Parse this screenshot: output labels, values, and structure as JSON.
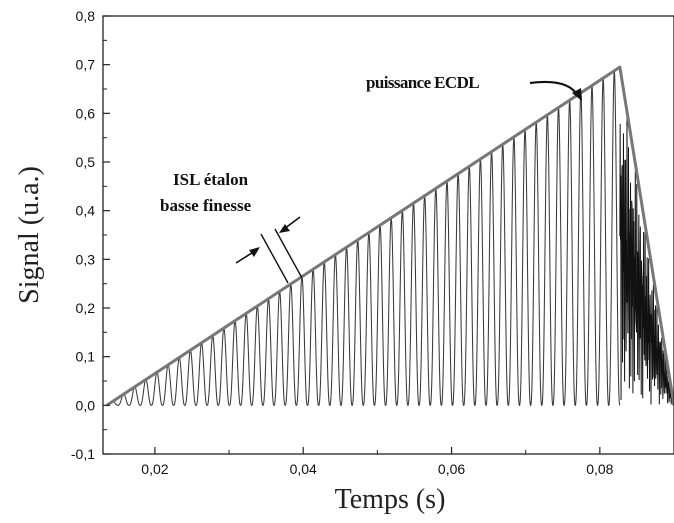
{
  "chart_data": {
    "type": "line",
    "title": "",
    "xlabel": "Temps (s)",
    "ylabel": "Signal (u.a.)",
    "xlim": [
      0.013,
      0.09
    ],
    "ylim": [
      -0.1,
      0.8
    ],
    "xticks": [
      0.02,
      0.04,
      0.06,
      0.08
    ],
    "xtick_labels": [
      "0,02",
      "0,04",
      "0,06",
      "0,08"
    ],
    "yticks": [
      -0.1,
      0.0,
      0.1,
      0.2,
      0.3,
      0.4,
      0.5,
      0.6,
      0.7,
      0.8
    ],
    "ytick_labels": [
      "-0,1",
      "0,0",
      "0,1",
      "0,2",
      "0,3",
      "0,4",
      "0,5",
      "0,6",
      "0,7",
      "0,8"
    ],
    "grid": false,
    "series": [
      {
        "role": "envelope",
        "color": "#777777",
        "x": [
          0.0135,
          0.0827,
          0.09
        ],
        "y": [
          0.0,
          0.695,
          0.0
        ]
      },
      {
        "role": "etalon-transmission",
        "color": "#3a3a3a",
        "x_start": 0.0135,
        "x_end": 0.0827,
        "peak_count": 46,
        "ramp_peak_max": 0.695,
        "min_value": 0.0,
        "decay_end": 0.09
      }
    ],
    "annotations": [
      {
        "text": "puissance ECDL"
      },
      {
        "text": "ISL étalon"
      },
      {
        "text": "basse finesse"
      }
    ]
  }
}
